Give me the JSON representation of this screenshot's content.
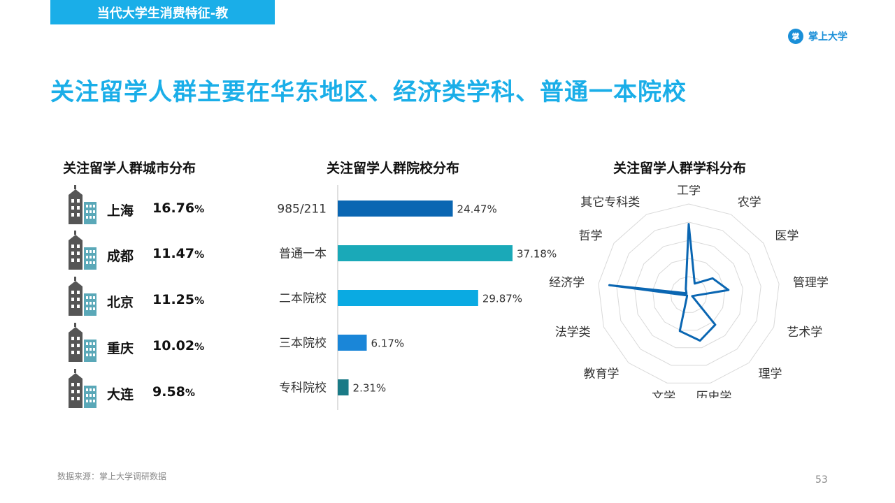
{
  "header": {
    "tag": "当代大学生消费特征-教",
    "logo_text": "掌上大学",
    "headline": "关注留学人群主要在华东地区、经济类学科、普通一本院校"
  },
  "city_section": {
    "title": "关注留学人群城市分布",
    "items": [
      {
        "name": "上海",
        "value": "16.76",
        "unit": "%"
      },
      {
        "name": "成都",
        "value": "11.47",
        "unit": "%"
      },
      {
        "name": "北京",
        "value": "11.25",
        "unit": "%"
      },
      {
        "name": "重庆",
        "value": "10.02",
        "unit": "%"
      },
      {
        "name": "大连",
        "value": "9.58",
        "unit": "%"
      }
    ]
  },
  "school_section": {
    "title": "关注留学人群院校分布"
  },
  "subject_section": {
    "title": "关注留学人群学科分布"
  },
  "chart_data": [
    {
      "type": "bar",
      "orientation": "horizontal",
      "title": "关注留学人群院校分布",
      "categories": [
        "985/211",
        "普通一本",
        "二本院校",
        "三本院校",
        "专科院校"
      ],
      "values": [
        24.47,
        37.18,
        29.87,
        6.17,
        2.31
      ],
      "value_labels": [
        "24.47%",
        "37.18%",
        "29.87%",
        "6.17%",
        "2.31%"
      ],
      "colors": [
        "#0a66b2",
        "#1aa9b8",
        "#0aaae2",
        "#1a86d8",
        "#1a7a86"
      ],
      "xlim": [
        0,
        37.18
      ]
    },
    {
      "type": "radar",
      "title": "关注留学人群学科分布",
      "categories": [
        "工学",
        "农学",
        "医学",
        "管理学",
        "艺术学",
        "理学",
        "历史学",
        "文学",
        "教育学",
        "法学类",
        "经济学",
        "哲学",
        "其它专科类"
      ],
      "values": [
        0.78,
        0.14,
        0.32,
        0.44,
        0.04,
        0.44,
        0.52,
        0.41,
        0.03,
        0.02,
        0.88,
        0.03,
        0.07
      ],
      "rlim": [
        0,
        1
      ],
      "rings": 5,
      "series_color": "#0a66b2"
    }
  ],
  "footer": {
    "source": "数据来源：掌上大学调研数据",
    "page_number": "53"
  }
}
